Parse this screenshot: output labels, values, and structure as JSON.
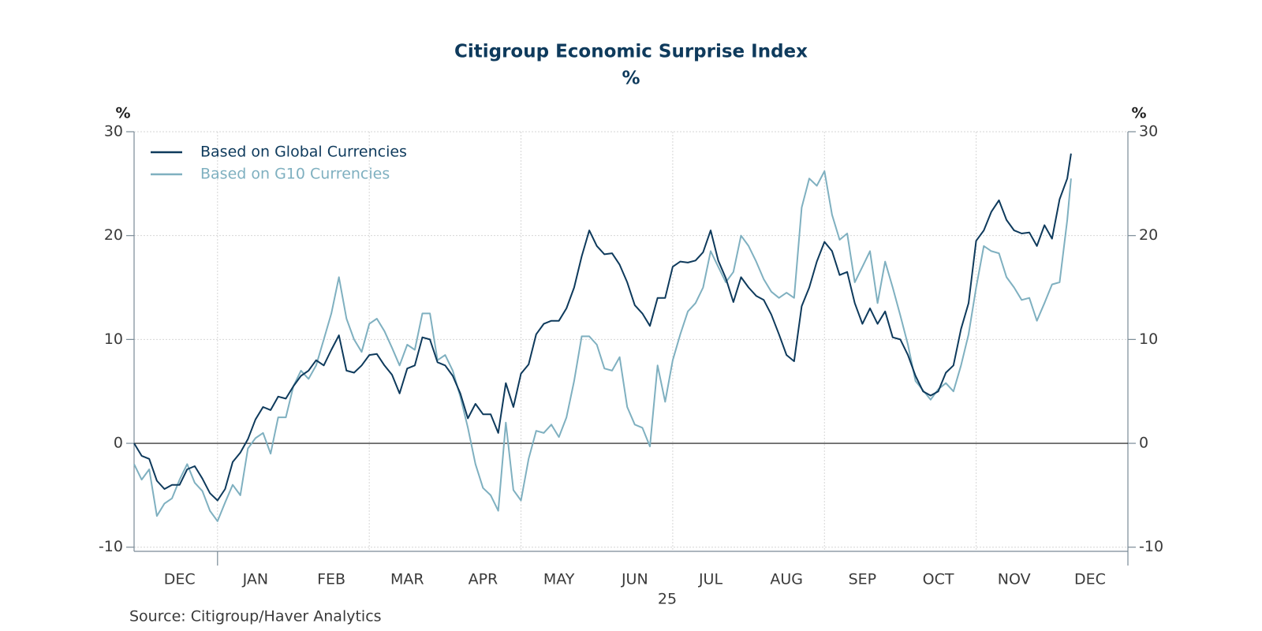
{
  "chart_data": {
    "type": "line",
    "title": "Citigroup Economic Surprise Index",
    "subtitle": "%",
    "y_label": "%",
    "y2_label": "%",
    "year_label": "25",
    "source": "Source:  Citigroup/Haver Analytics",
    "x": [
      -0.1,
      0,
      0.1,
      0.2,
      0.3,
      0.4,
      0.5,
      0.6,
      0.7,
      0.8,
      0.9,
      1,
      1.1,
      1.2,
      1.3,
      1.4,
      1.5,
      1.6,
      1.7,
      1.8,
      1.9,
      2,
      2.1,
      2.2,
      2.3,
      2.4,
      2.5,
      2.6,
      2.7,
      2.8,
      2.9,
      3,
      3.1,
      3.2,
      3.3,
      3.4,
      3.5,
      3.6,
      3.7,
      3.8,
      3.9,
      4,
      4.1,
      4.2,
      4.3,
      4.4,
      4.5,
      4.6,
      4.7,
      4.8,
      4.9,
      5,
      5.1,
      5.2,
      5.3,
      5.4,
      5.5,
      5.6,
      5.7,
      5.8,
      5.9,
      6,
      6.1,
      6.2,
      6.3,
      6.4,
      6.5,
      6.6,
      6.7,
      6.8,
      6.9,
      7,
      7.1,
      7.2,
      7.3,
      7.4,
      7.5,
      7.6,
      7.7,
      7.8,
      7.9,
      8,
      8.1,
      8.2,
      8.3,
      8.4,
      8.5,
      8.6,
      8.7,
      8.8,
      8.9,
      9,
      9.1,
      9.2,
      9.3,
      9.4,
      9.5,
      9.6,
      9.7,
      9.8,
      9.9,
      10,
      10.1,
      10.2,
      10.3,
      10.4,
      10.5,
      10.6,
      10.7,
      10.8,
      10.9,
      11,
      11.1,
      11.2,
      11.3,
      11.4,
      11.5,
      11.6,
      11.7,
      11.8,
      11.9,
      12,
      12.1,
      12.2,
      12.25
    ],
    "series": [
      {
        "name": "Based on Global Currencies",
        "color": "#0e3a5c",
        "values": [
          0,
          -1.2,
          -1.5,
          -3.6,
          -4.4,
          -4.0,
          -4.0,
          -2.5,
          -2.2,
          -3.4,
          -4.8,
          -5.5,
          -4.4,
          -1.8,
          -0.9,
          0.4,
          2.3,
          3.5,
          3.2,
          4.5,
          4.3,
          5.5,
          6.5,
          7.0,
          8.0,
          7.5,
          9.0,
          10.4,
          7.0,
          6.8,
          7.5,
          8.5,
          8.6,
          7.5,
          6.6,
          4.8,
          7.2,
          7.5,
          10.2,
          10.0,
          7.8,
          7.5,
          6.5,
          4.8,
          2.4,
          3.8,
          2.8,
          2.8,
          1.0,
          5.8,
          3.5,
          6.7,
          7.6,
          10.5,
          11.5,
          11.8,
          11.8,
          13.0,
          15.0,
          18.0,
          20.5,
          19.0,
          18.2,
          18.3,
          17.2,
          15.5,
          13.3,
          12.5,
          11.3,
          14.0,
          14.0,
          17.0,
          17.5,
          17.4,
          17.6,
          18.4,
          20.5,
          17.6,
          15.9,
          13.6,
          16.0,
          15.0,
          14.2,
          13.8,
          12.4,
          10.5,
          8.5,
          7.9,
          13.2,
          15.0,
          17.5,
          19.4,
          18.5,
          16.2,
          16.5,
          13.5,
          11.5,
          13.0,
          11.5,
          12.7,
          10.2,
          10.0,
          8.5,
          6.5,
          5.0,
          4.6,
          5.0,
          6.8,
          7.5,
          11.0,
          13.5,
          19.5,
          20.5,
          22.3,
          23.4,
          21.5,
          20.5,
          20.2,
          20.3,
          19.0,
          21.0,
          19.7,
          23.5,
          25.5,
          27.9
        ]
      },
      {
        "name": "Based on G10 Currencies",
        "color": "#7fb0c0",
        "values": [
          -2.0,
          -3.5,
          -2.5,
          -7.0,
          -5.8,
          -5.3,
          -3.5,
          -2.0,
          -3.8,
          -4.6,
          -6.5,
          -7.5,
          -5.7,
          -4.0,
          -5.0,
          -0.5,
          0.5,
          1.0,
          -1.0,
          2.5,
          2.5,
          5.5,
          7.0,
          6.2,
          7.5,
          10.0,
          12.5,
          16.0,
          12.0,
          10.0,
          8.8,
          11.5,
          12.0,
          10.8,
          9.2,
          7.5,
          9.5,
          9.0,
          12.5,
          12.5,
          8.0,
          8.5,
          7.0,
          4.5,
          1.5,
          -2.0,
          -4.3,
          -5.0,
          -6.5,
          2.0,
          -4.5,
          -5.5,
          -1.5,
          1.2,
          1.0,
          1.8,
          0.6,
          2.5,
          6.0,
          10.3,
          10.3,
          9.5,
          7.2,
          7.0,
          8.3,
          3.5,
          1.8,
          1.5,
          -0.3,
          7.5,
          4.0,
          8.0,
          10.5,
          12.7,
          13.5,
          15.0,
          18.5,
          17.0,
          15.5,
          16.5,
          20.0,
          19.0,
          17.5,
          15.8,
          14.6,
          14.0,
          14.5,
          14.0,
          22.7,
          25.5,
          24.8,
          26.2,
          22.0,
          19.6,
          20.2,
          15.5,
          17.0,
          18.5,
          13.5,
          17.5,
          15.0,
          12.3,
          9.5,
          6.0,
          5.1,
          4.2,
          5.2,
          5.8,
          5.0,
          7.5,
          10.5,
          15.0,
          19.0,
          18.5,
          18.3,
          16.0,
          15.0,
          13.8,
          14.0,
          11.8,
          13.5,
          15.3,
          15.5,
          21.5,
          25.5
        ]
      }
    ],
    "xlim": [
      -0.1,
      13.0
    ],
    "xticks": [
      {
        "value": 0.5,
        "label": "DEC"
      },
      {
        "value": 1.5,
        "label": "JAN"
      },
      {
        "value": 2.5,
        "label": "FEB"
      },
      {
        "value": 3.5,
        "label": "MAR"
      },
      {
        "value": 4.5,
        "label": "APR"
      },
      {
        "value": 5.5,
        "label": "MAY"
      },
      {
        "value": 6.5,
        "label": "JUN"
      },
      {
        "value": 7.5,
        "label": "JUL"
      },
      {
        "value": 8.5,
        "label": "AUG"
      },
      {
        "value": 9.5,
        "label": "SEP"
      },
      {
        "value": 10.5,
        "label": "OCT"
      },
      {
        "value": 11.5,
        "label": "NOV"
      },
      {
        "value": 12.5,
        "label": "DEC"
      }
    ],
    "xgrid": [
      1,
      3,
      5,
      7,
      9,
      11
    ],
    "ylim": [
      -10.4,
      30
    ],
    "yticks": [
      -10,
      0,
      10,
      20,
      30
    ],
    "y2lim": [
      -10.4,
      30
    ],
    "y2ticks": [
      -10,
      0,
      10,
      20,
      30
    ],
    "grid": true,
    "legend": "top-left"
  }
}
